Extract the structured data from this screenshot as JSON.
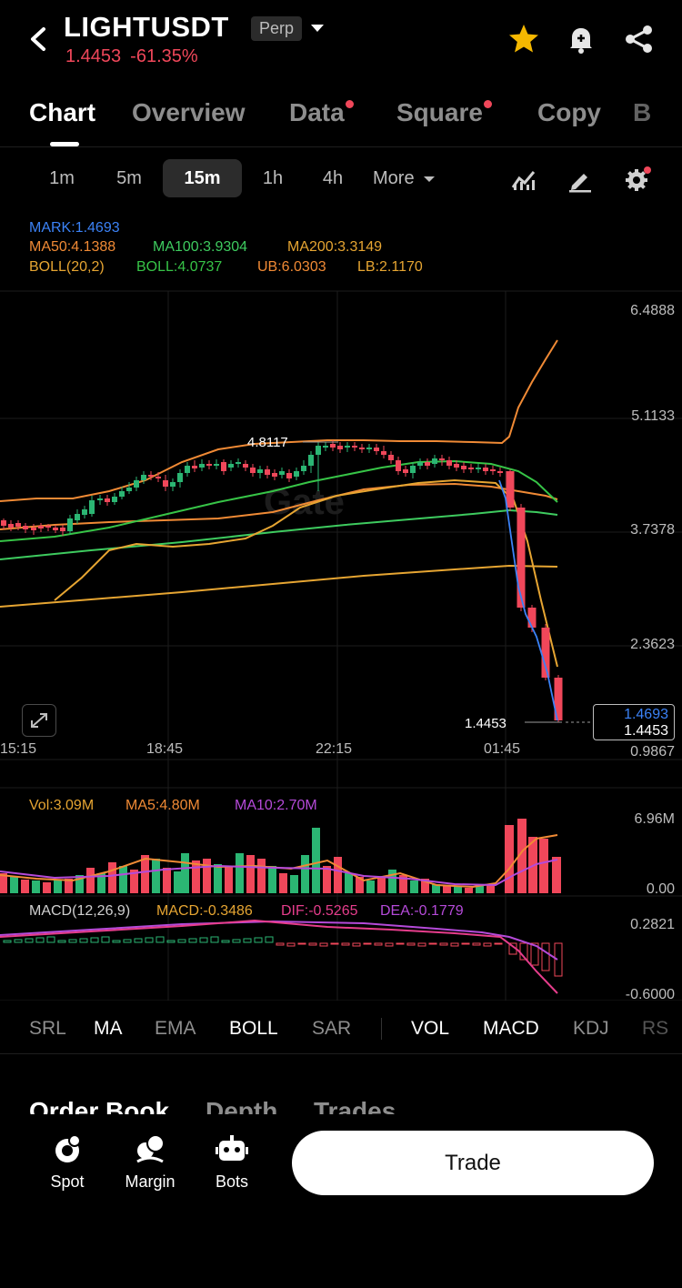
{
  "header": {
    "symbol": "LIGHTUSDT",
    "contract_type": "Perp",
    "last_price": "1.4453",
    "change_pct": "-61.35%"
  },
  "tabs": [
    {
      "label": "Chart",
      "active": true,
      "dot": false
    },
    {
      "label": "Overview",
      "active": false,
      "dot": false
    },
    {
      "label": "Data",
      "active": false,
      "dot": true
    },
    {
      "label": "Square",
      "active": false,
      "dot": true
    },
    {
      "label": "Copy",
      "active": false,
      "dot": false
    },
    {
      "label": "B",
      "active": false,
      "dot": false
    }
  ],
  "timeframes": [
    "1m",
    "5m",
    "15m",
    "1h",
    "4h",
    "More"
  ],
  "active_timeframe": "15m",
  "indicators_main": {
    "mark": "MARK:1.4693",
    "ma50": "MA50:4.1388",
    "ma100": "MA100:3.9304",
    "ma200": "MA200:3.3149",
    "boll": "BOLL(20,2)",
    "boll_mid": "BOLL:4.0737",
    "ub": "UB:6.0303",
    "lb": "LB:2.1170"
  },
  "price_axis": [
    "6.4888",
    "5.1133",
    "3.7378",
    "2.3623",
    "0.9867"
  ],
  "time_axis": [
    "15:15",
    "18:45",
    "22:15",
    "01:45"
  ],
  "high_label": "4.8117",
  "low_label": "1.4453",
  "price_box": {
    "mark": "1.4693",
    "last": "1.4453"
  },
  "volume": {
    "vol": "Vol:3.09M",
    "ma5": "MA5:4.80M",
    "ma10": "MA10:2.70M",
    "axis_top": "6.96M",
    "axis_bottom": "0.00"
  },
  "macd": {
    "label": "MACD(12,26,9)",
    "macd": "MACD:-0.3486",
    "dif": "DIF:-0.5265",
    "dea": "DEA:-0.1779",
    "axis_top": "0.2821",
    "axis_bottom": "-0.6000"
  },
  "indicator_tabs": [
    {
      "label": "SRL",
      "on": false
    },
    {
      "label": "MA",
      "on": true
    },
    {
      "label": "EMA",
      "on": false
    },
    {
      "label": "BOLL",
      "on": true
    },
    {
      "label": "SAR",
      "on": false
    },
    {
      "label": "VOL",
      "on": true
    },
    {
      "label": "MACD",
      "on": true
    },
    {
      "label": "KDJ",
      "on": false
    },
    {
      "label": "RS",
      "on": false
    }
  ],
  "orderbook_tabs": [
    "Order Book",
    "Depth",
    "Trades"
  ],
  "bottom_nav": {
    "spot": "Spot",
    "margin": "Margin",
    "bots": "Bots",
    "trade": "Trade"
  },
  "colors": {
    "up": "#2bb673",
    "down": "#f0475a",
    "accent_star": "#f5b800",
    "mark": "#3b82f6",
    "ma50": "#f08a35",
    "ma100": "#3ecb5f",
    "ma200": "#e6a532",
    "boll_mid": "#37c447"
  },
  "watermark": "Gate"
}
